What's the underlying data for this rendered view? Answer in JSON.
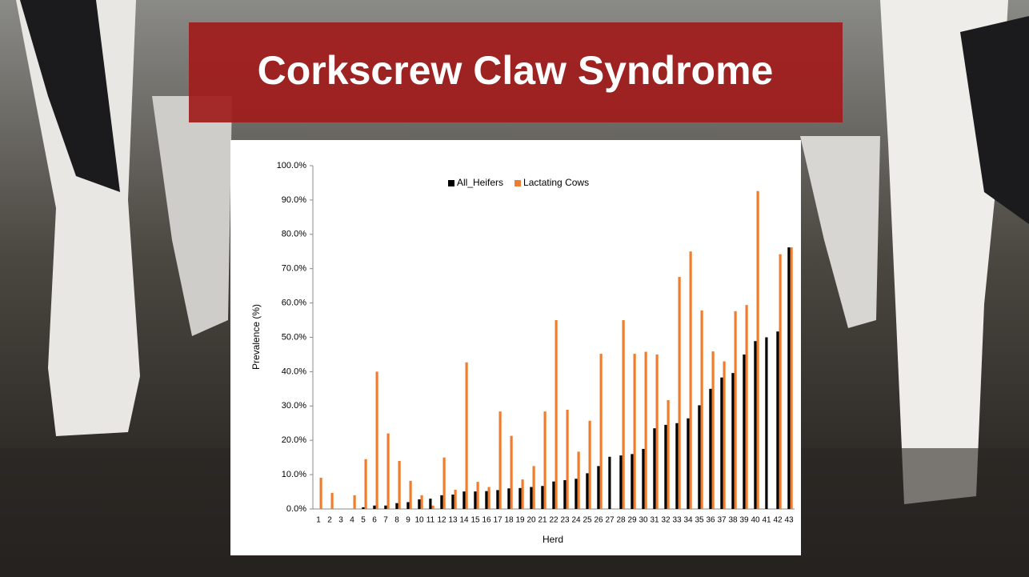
{
  "chart_data": {
    "type": "bar",
    "title": "Corkscrew Claw Syndrome",
    "x_label": "Herd",
    "y_label": "Prevalence (%)",
    "categories": [
      "1",
      "2",
      "3",
      "4",
      "5",
      "6",
      "7",
      "8",
      "9",
      "10",
      "11",
      "12",
      "13",
      "14",
      "15",
      "16",
      "17",
      "18",
      "19",
      "20",
      "21",
      "22",
      "23",
      "24",
      "25",
      "26",
      "27",
      "28",
      "29",
      "30",
      "31",
      "32",
      "33",
      "34",
      "35",
      "36",
      "37",
      "38",
      "39",
      "40",
      "41",
      "42",
      "43"
    ],
    "series": [
      {
        "name": "All_Heifers",
        "color": "#000000",
        "values": [
          0,
          0,
          0,
          0,
          0.5,
          1.0,
          1.0,
          1.7,
          2.0,
          2.8,
          3.0,
          4.0,
          4.2,
          5.1,
          5.1,
          5.2,
          5.5,
          6.0,
          6.1,
          6.4,
          6.7,
          8.0,
          8.4,
          8.8,
          10.4,
          12.5,
          15.2,
          15.6,
          16.0,
          17.5,
          23.5,
          24.5,
          25.0,
          26.4,
          30.2,
          35.0,
          38.3,
          39.6,
          45.0,
          48.9,
          50.0,
          51.7,
          76.2
        ]
      },
      {
        "name": "Lactating Cows",
        "color": "#ed7d31",
        "values": [
          9.1,
          4.7,
          0,
          4.0,
          14.5,
          40.0,
          22.0,
          14.0,
          8.2,
          4.0,
          1.0,
          15.0,
          5.6,
          42.7,
          7.9,
          6.4,
          28.4,
          21.3,
          8.6,
          12.5,
          28.4,
          55.0,
          28.9,
          16.7,
          25.7,
          45.2,
          0,
          55.0,
          45.2,
          45.8,
          45.0,
          31.7,
          67.6,
          75.0,
          57.8,
          45.9,
          43.0,
          57.6,
          59.4,
          92.6,
          0,
          74.2,
          76.2
        ]
      }
    ],
    "ylim": [
      0,
      100
    ],
    "yticks": [
      {
        "value": 0,
        "label": "0.0%"
      },
      {
        "value": 10,
        "label": "10.0%"
      },
      {
        "value": 20,
        "label": "20.0%"
      },
      {
        "value": 30,
        "label": "30.0%"
      },
      {
        "value": 40,
        "label": "40.0%"
      },
      {
        "value": 50,
        "label": "50.0%"
      },
      {
        "value": 60,
        "label": "60.0%"
      },
      {
        "value": 70,
        "label": "70.0%"
      },
      {
        "value": 80,
        "label": "80.0%"
      },
      {
        "value": 90,
        "label": "90.0%"
      },
      {
        "value": 100,
        "label": "100.0%"
      }
    ],
    "legend": "top"
  }
}
